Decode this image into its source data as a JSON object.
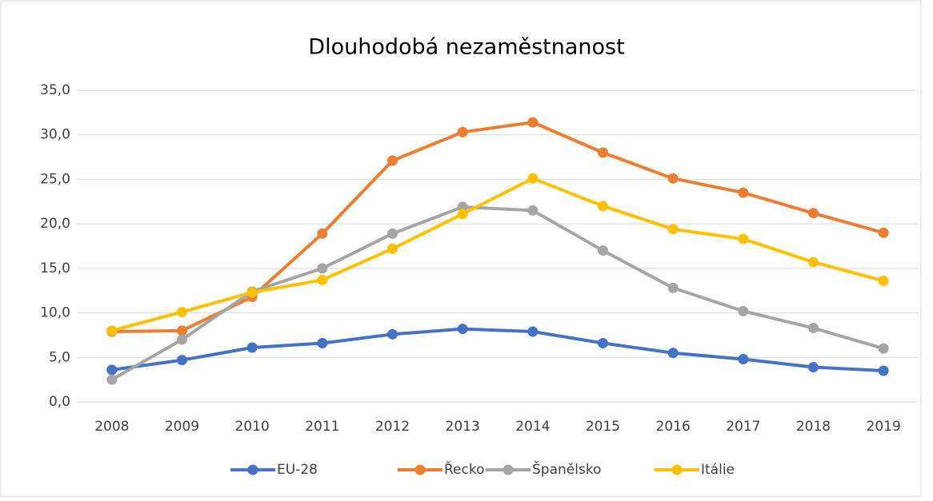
{
  "chart_data": {
    "type": "line",
    "title": "Dlouhodobá nezaměstnanost",
    "categories": [
      "2008",
      "2009",
      "2010",
      "2011",
      "2012",
      "2013",
      "2014",
      "2015",
      "2016",
      "2017",
      "2018",
      "2019"
    ],
    "series": [
      {
        "name": "EU-28",
        "color": "#4472c4",
        "values": [
          3.6,
          4.7,
          6.1,
          6.6,
          7.6,
          8.2,
          7.9,
          6.6,
          5.5,
          4.8,
          3.9,
          3.5
        ]
      },
      {
        "name": "Řecko",
        "color": "#ed7d31",
        "values": [
          7.9,
          8.0,
          11.8,
          18.9,
          27.1,
          30.3,
          31.4,
          28.0,
          25.1,
          23.5,
          21.2,
          19.0
        ]
      },
      {
        "name": "Španělsko",
        "color": "#a5a5a5",
        "values": [
          2.5,
          7.0,
          12.4,
          15.0,
          18.9,
          21.9,
          21.5,
          17.0,
          12.8,
          10.2,
          8.3,
          6.0
        ]
      },
      {
        "name": "Itálie",
        "color": "#ffc000",
        "values": [
          8.0,
          10.1,
          12.3,
          13.7,
          17.2,
          21.1,
          25.1,
          22.0,
          19.4,
          18.3,
          15.7,
          13.6
        ]
      }
    ],
    "ylim": [
      0,
      35
    ],
    "yticks": [
      {
        "value": 0,
        "label": "0,0"
      },
      {
        "value": 5,
        "label": "5,0"
      },
      {
        "value": 10,
        "label": "10,0"
      },
      {
        "value": 15,
        "label": "15,0"
      },
      {
        "value": 20,
        "label": "20,0"
      },
      {
        "value": 25,
        "label": "25,0"
      },
      {
        "value": 30,
        "label": "30,0"
      },
      {
        "value": 35,
        "label": "35,0"
      }
    ],
    "grid": true,
    "legend": "bottom"
  }
}
